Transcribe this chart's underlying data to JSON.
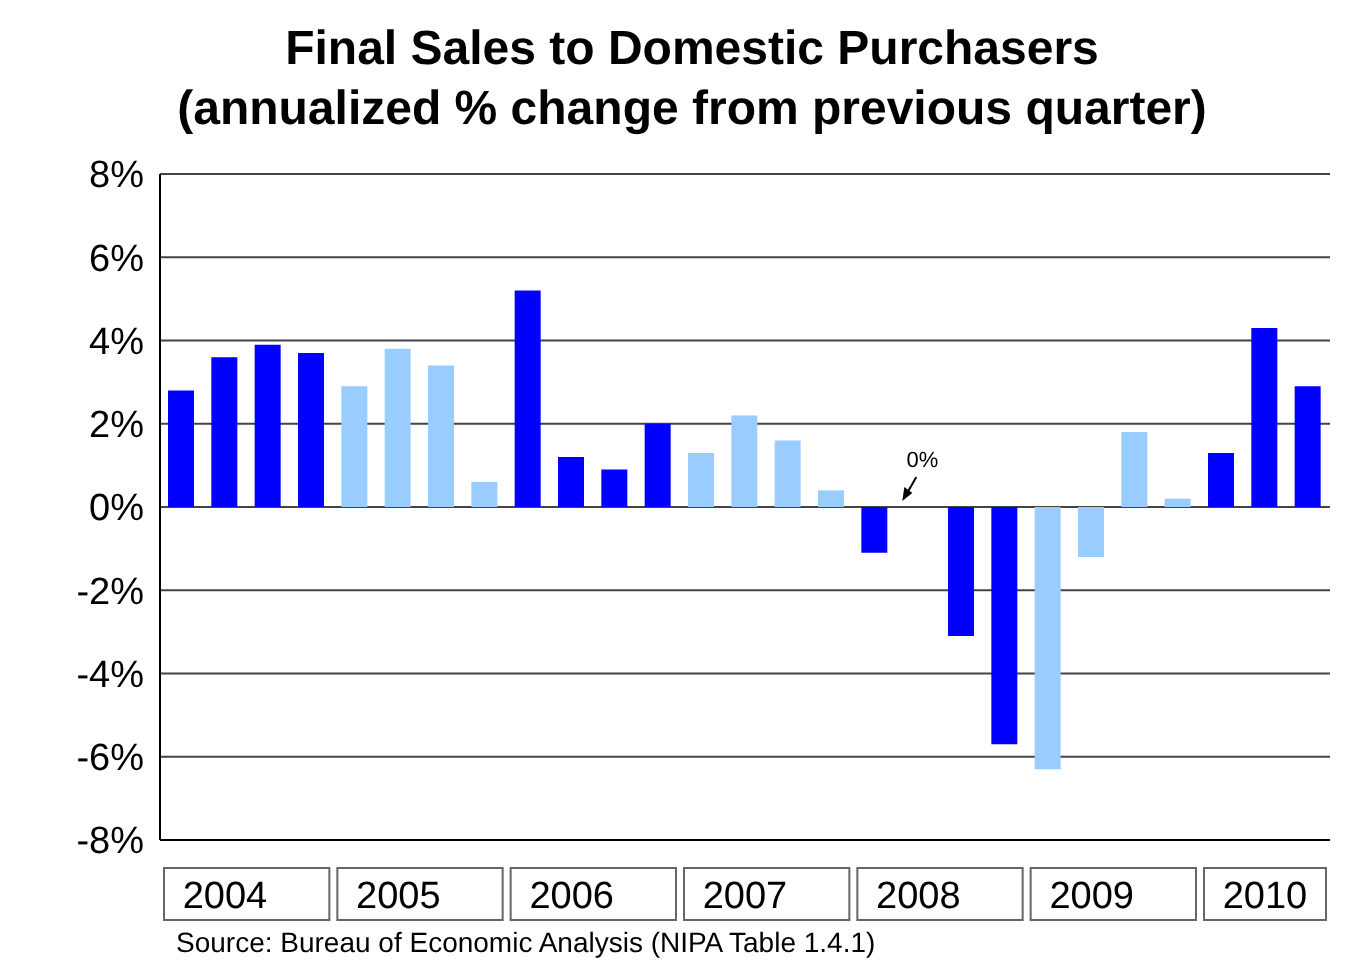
{
  "chart_data": {
    "type": "bar",
    "title": "Final Sales to Domestic Purchasers",
    "subtitle": "(annualized % change from previous quarter)",
    "categories": [
      null,
      "2004",
      null,
      null,
      null,
      "2005",
      null,
      null,
      null,
      "2006",
      null,
      null,
      null,
      "2007",
      null,
      null,
      null,
      "2008",
      null,
      null,
      null,
      "2009",
      null,
      null,
      null,
      "2010",
      null
    ],
    "values": [
      2.8,
      3.6,
      3.9,
      3.7,
      2.9,
      3.8,
      3.4,
      0.6,
      5.2,
      1.2,
      0.9,
      2.0,
      1.3,
      2.2,
      1.6,
      0.4,
      -1.1,
      0,
      -3.1,
      -5.7,
      -6.3,
      -1.2,
      1.8,
      0.2,
      1.3,
      4.3,
      2.9
    ],
    "colors": [
      "#0000ff",
      "#0000ff",
      "#0000ff",
      "#0000ff",
      "#99ccff",
      "#99ccff",
      "#99ccff",
      "#99ccff",
      "#0000ff",
      "#0000ff",
      "#0000ff",
      "#0000ff",
      "#99ccff",
      "#99ccff",
      "#99ccff",
      "#99ccff",
      "#0000ff",
      "#0000ff",
      "#0000ff",
      "#0000ff",
      "#99ccff",
      "#99ccff",
      "#99ccff",
      "#99ccff",
      "#0000ff",
      "#0000ff",
      "#0000ff"
    ],
    "value_labels": [
      null,
      null,
      null,
      null,
      null,
      null,
      null,
      null,
      null,
      null,
      null,
      null,
      null,
      null,
      null,
      null,
      null,
      "0%",
      null,
      null,
      null,
      null,
      null,
      null,
      null,
      null,
      null
    ],
    "ylim": [
      -8,
      8
    ],
    "yticks": [
      {
        "value": -8,
        "label": "-8%"
      },
      {
        "value": -6,
        "label": "-6%"
      },
      {
        "value": -4,
        "label": "-4%"
      },
      {
        "value": -2,
        "label": "-2%"
      },
      {
        "value": 0,
        "label": "0%"
      },
      {
        "value": 2,
        "label": "2%"
      },
      {
        "value": 4,
        "label": "4%"
      },
      {
        "value": 6,
        "label": "6%"
      },
      {
        "value": 8,
        "label": "8%"
      }
    ],
    "grid": "y",
    "legend": false,
    "annotations": [
      "Source: Bureau of Economic Analysis (NIPA Table 1.4.1)"
    ]
  }
}
